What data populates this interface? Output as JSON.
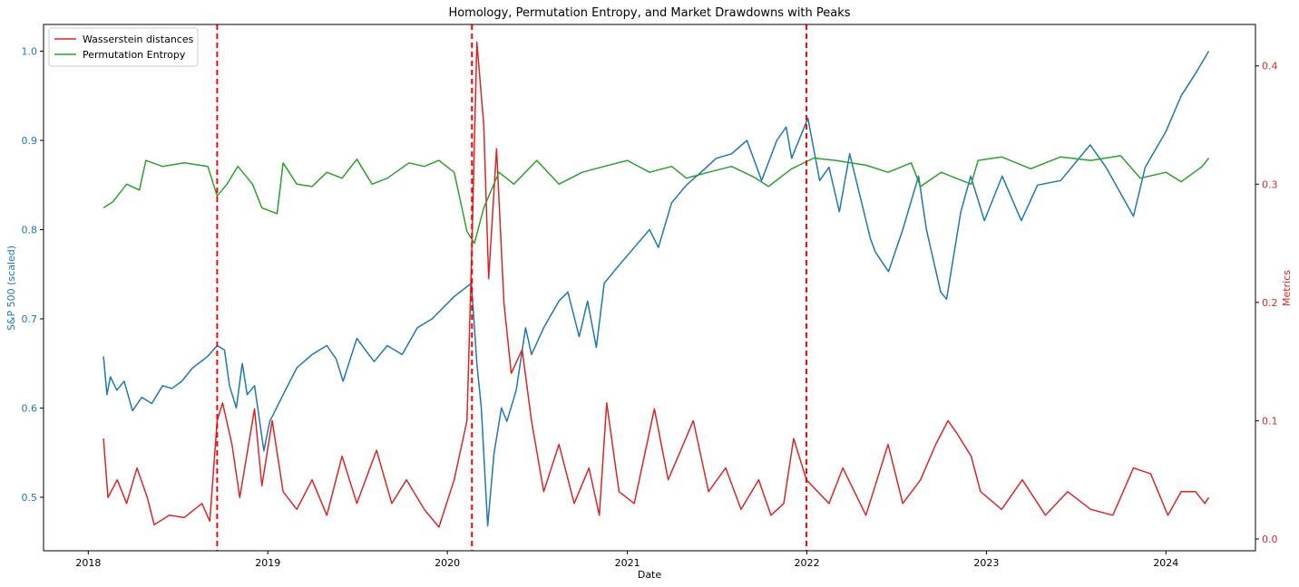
{
  "chart_data": {
    "type": "line",
    "title": "Homology, Permutation Entropy, and Market Drawdowns with Peaks",
    "xlabel": "Date",
    "ylabel_left": "S&P 500 (scaled)",
    "ylabel_right": "Metrics",
    "x_range": [
      "2017-10-02",
      "2024-07-01"
    ],
    "x_ticks": [
      {
        "date": "2018-01-01",
        "label": "2018"
      },
      {
        "date": "2019-01-01",
        "label": "2019"
      },
      {
        "date": "2020-01-01",
        "label": "2020"
      },
      {
        "date": "2021-01-01",
        "label": "2021"
      },
      {
        "date": "2022-01-01",
        "label": "2022"
      },
      {
        "date": "2023-01-01",
        "label": "2023"
      },
      {
        "date": "2024-01-01",
        "label": "2024"
      }
    ],
    "ylim_left": [
      0.44,
      1.03
    ],
    "y_ticks_left": [
      0.5,
      0.6,
      0.7,
      0.8,
      0.9,
      1.0
    ],
    "ylim_right": [
      -0.01,
      0.435
    ],
    "y_ticks_right": [
      0.0,
      0.1,
      0.2,
      0.3,
      0.4
    ],
    "legend_position": "top-left",
    "colors": {
      "sp500": "#1f77b4",
      "wasserstein": "#d62728",
      "entropy": "#2ca02c",
      "peak": "#ff0000"
    },
    "peak_dates": [
      "2018-09-20",
      "2020-02-20",
      "2021-12-31"
    ],
    "series": [
      {
        "key": "sp500",
        "axis": "left",
        "values": [
          [
            "2018-02-01",
            0.658
          ],
          [
            "2018-02-08",
            0.615
          ],
          [
            "2018-02-15",
            0.635
          ],
          [
            "2018-02-28",
            0.62
          ],
          [
            "2018-03-15",
            0.63
          ],
          [
            "2018-04-01",
            0.597
          ],
          [
            "2018-04-20",
            0.612
          ],
          [
            "2018-05-10",
            0.605
          ],
          [
            "2018-06-01",
            0.625
          ],
          [
            "2018-06-20",
            0.622
          ],
          [
            "2018-07-10",
            0.63
          ],
          [
            "2018-08-01",
            0.645
          ],
          [
            "2018-09-01",
            0.658
          ],
          [
            "2018-09-20",
            0.67
          ],
          [
            "2018-10-05",
            0.665
          ],
          [
            "2018-10-15",
            0.625
          ],
          [
            "2018-10-29",
            0.6
          ],
          [
            "2018-11-10",
            0.65
          ],
          [
            "2018-11-20",
            0.615
          ],
          [
            "2018-12-05",
            0.625
          ],
          [
            "2018-12-24",
            0.552
          ],
          [
            "2019-01-05",
            0.585
          ],
          [
            "2019-02-01",
            0.615
          ],
          [
            "2019-03-01",
            0.645
          ],
          [
            "2019-04-01",
            0.66
          ],
          [
            "2019-05-01",
            0.67
          ],
          [
            "2019-05-20",
            0.655
          ],
          [
            "2019-06-03",
            0.63
          ],
          [
            "2019-07-01",
            0.678
          ],
          [
            "2019-08-05",
            0.652
          ],
          [
            "2019-09-01",
            0.67
          ],
          [
            "2019-10-01",
            0.66
          ],
          [
            "2019-11-01",
            0.69
          ],
          [
            "2019-12-01",
            0.7
          ],
          [
            "2020-01-15",
            0.725
          ],
          [
            "2020-02-19",
            0.74
          ],
          [
            "2020-03-01",
            0.65
          ],
          [
            "2020-03-10",
            0.6
          ],
          [
            "2020-03-23",
            0.468
          ],
          [
            "2020-04-05",
            0.55
          ],
          [
            "2020-04-20",
            0.6
          ],
          [
            "2020-05-01",
            0.585
          ],
          [
            "2020-05-20",
            0.62
          ],
          [
            "2020-06-08",
            0.69
          ],
          [
            "2020-06-20",
            0.66
          ],
          [
            "2020-07-15",
            0.69
          ],
          [
            "2020-08-15",
            0.72
          ],
          [
            "2020-09-02",
            0.73
          ],
          [
            "2020-09-25",
            0.68
          ],
          [
            "2020-10-12",
            0.72
          ],
          [
            "2020-10-30",
            0.668
          ],
          [
            "2020-11-15",
            0.74
          ],
          [
            "2020-12-15",
            0.76
          ],
          [
            "2021-01-15",
            0.78
          ],
          [
            "2021-02-15",
            0.8
          ],
          [
            "2021-03-05",
            0.78
          ],
          [
            "2021-04-01",
            0.83
          ],
          [
            "2021-05-01",
            0.85
          ],
          [
            "2021-06-01",
            0.865
          ],
          [
            "2021-07-01",
            0.88
          ],
          [
            "2021-08-01",
            0.885
          ],
          [
            "2021-09-01",
            0.9
          ],
          [
            "2021-10-01",
            0.855
          ],
          [
            "2021-11-01",
            0.9
          ],
          [
            "2021-11-20",
            0.915
          ],
          [
            "2021-12-01",
            0.88
          ],
          [
            "2022-01-03",
            0.925
          ],
          [
            "2022-01-27",
            0.855
          ],
          [
            "2022-02-15",
            0.87
          ],
          [
            "2022-03-08",
            0.82
          ],
          [
            "2022-03-29",
            0.885
          ],
          [
            "2022-05-10",
            0.79
          ],
          [
            "2022-05-20",
            0.775
          ],
          [
            "2022-06-16",
            0.753
          ],
          [
            "2022-07-15",
            0.8
          ],
          [
            "2022-08-16",
            0.86
          ],
          [
            "2022-09-01",
            0.8
          ],
          [
            "2022-09-30",
            0.73
          ],
          [
            "2022-10-12",
            0.722
          ],
          [
            "2022-11-10",
            0.82
          ],
          [
            "2022-11-30",
            0.86
          ],
          [
            "2022-12-28",
            0.81
          ],
          [
            "2023-02-02",
            0.86
          ],
          [
            "2023-03-13",
            0.81
          ],
          [
            "2023-04-15",
            0.85
          ],
          [
            "2023-06-01",
            0.855
          ],
          [
            "2023-07-31",
            0.895
          ],
          [
            "2023-09-01",
            0.87
          ],
          [
            "2023-10-27",
            0.815
          ],
          [
            "2023-11-20",
            0.87
          ],
          [
            "2024-01-01",
            0.91
          ],
          [
            "2024-02-01",
            0.95
          ],
          [
            "2024-03-01",
            0.975
          ],
          [
            "2024-03-28",
            1.0
          ]
        ]
      },
      {
        "key": "wasserstein",
        "name": "Wasserstein distances",
        "axis": "right",
        "values": [
          [
            "2018-02-01",
            0.085
          ],
          [
            "2018-02-10",
            0.035
          ],
          [
            "2018-03-01",
            0.05
          ],
          [
            "2018-03-20",
            0.03
          ],
          [
            "2018-04-10",
            0.06
          ],
          [
            "2018-05-01",
            0.035
          ],
          [
            "2018-05-15",
            0.012
          ],
          [
            "2018-06-15",
            0.02
          ],
          [
            "2018-07-15",
            0.018
          ],
          [
            "2018-08-20",
            0.03
          ],
          [
            "2018-09-05",
            0.015
          ],
          [
            "2018-09-20",
            0.1
          ],
          [
            "2018-10-01",
            0.115
          ],
          [
            "2018-10-20",
            0.08
          ],
          [
            "2018-11-05",
            0.035
          ],
          [
            "2018-12-05",
            0.11
          ],
          [
            "2018-12-20",
            0.045
          ],
          [
            "2019-01-10",
            0.1
          ],
          [
            "2019-02-01",
            0.04
          ],
          [
            "2019-03-01",
            0.025
          ],
          [
            "2019-04-01",
            0.05
          ],
          [
            "2019-05-01",
            0.02
          ],
          [
            "2019-06-01",
            0.07
          ],
          [
            "2019-07-01",
            0.03
          ],
          [
            "2019-08-10",
            0.075
          ],
          [
            "2019-09-10",
            0.03
          ],
          [
            "2019-10-10",
            0.05
          ],
          [
            "2019-11-15",
            0.025
          ],
          [
            "2019-12-15",
            0.01
          ],
          [
            "2020-01-15",
            0.05
          ],
          [
            "2020-02-10",
            0.1
          ],
          [
            "2020-02-20",
            0.25
          ],
          [
            "2020-03-01",
            0.42
          ],
          [
            "2020-03-15",
            0.35
          ],
          [
            "2020-03-25",
            0.22
          ],
          [
            "2020-04-10",
            0.33
          ],
          [
            "2020-04-25",
            0.2
          ],
          [
            "2020-05-10",
            0.14
          ],
          [
            "2020-06-01",
            0.16
          ],
          [
            "2020-06-20",
            0.1
          ],
          [
            "2020-07-15",
            0.04
          ],
          [
            "2020-08-15",
            0.08
          ],
          [
            "2020-09-15",
            0.03
          ],
          [
            "2020-10-15",
            0.06
          ],
          [
            "2020-11-05",
            0.02
          ],
          [
            "2020-11-20",
            0.115
          ],
          [
            "2020-12-15",
            0.04
          ],
          [
            "2021-01-15",
            0.03
          ],
          [
            "2021-02-25",
            0.11
          ],
          [
            "2021-03-25",
            0.05
          ],
          [
            "2021-05-15",
            0.1
          ],
          [
            "2021-06-15",
            0.04
          ],
          [
            "2021-07-20",
            0.06
          ],
          [
            "2021-08-20",
            0.025
          ],
          [
            "2021-09-25",
            0.05
          ],
          [
            "2021-10-20",
            0.02
          ],
          [
            "2021-11-15",
            0.03
          ],
          [
            "2021-12-05",
            0.085
          ],
          [
            "2021-12-31",
            0.05
          ],
          [
            "2022-02-15",
            0.03
          ],
          [
            "2022-03-15",
            0.06
          ],
          [
            "2022-05-01",
            0.02
          ],
          [
            "2022-06-15",
            0.08
          ],
          [
            "2022-07-15",
            0.03
          ],
          [
            "2022-08-20",
            0.05
          ],
          [
            "2022-09-20",
            0.08
          ],
          [
            "2022-10-15",
            0.1
          ],
          [
            "2022-11-01",
            0.09
          ],
          [
            "2022-12-01",
            0.07
          ],
          [
            "2022-12-20",
            0.04
          ],
          [
            "2023-02-01",
            0.025
          ],
          [
            "2023-03-15",
            0.05
          ],
          [
            "2023-05-01",
            0.02
          ],
          [
            "2023-06-15",
            0.04
          ],
          [
            "2023-08-01",
            0.025
          ],
          [
            "2023-09-15",
            0.02
          ],
          [
            "2023-10-27",
            0.06
          ],
          [
            "2023-12-01",
            0.055
          ],
          [
            "2024-01-05",
            0.02
          ],
          [
            "2024-02-01",
            0.04
          ],
          [
            "2024-03-01",
            0.04
          ],
          [
            "2024-03-20",
            0.03
          ],
          [
            "2024-03-28",
            0.035
          ]
        ]
      },
      {
        "key": "entropy",
        "name": "Permutation Entropy",
        "axis": "right",
        "values": [
          [
            "2018-02-01",
            0.28
          ],
          [
            "2018-02-20",
            0.285
          ],
          [
            "2018-03-20",
            0.3
          ],
          [
            "2018-04-15",
            0.295
          ],
          [
            "2018-04-28",
            0.32
          ],
          [
            "2018-06-01",
            0.315
          ],
          [
            "2018-07-15",
            0.318
          ],
          [
            "2018-09-01",
            0.315
          ],
          [
            "2018-09-20",
            0.29
          ],
          [
            "2018-10-10",
            0.3
          ],
          [
            "2018-11-01",
            0.315
          ],
          [
            "2018-12-01",
            0.3
          ],
          [
            "2018-12-20",
            0.28
          ],
          [
            "2019-01-20",
            0.275
          ],
          [
            "2019-02-01",
            0.318
          ],
          [
            "2019-03-01",
            0.3
          ],
          [
            "2019-04-01",
            0.298
          ],
          [
            "2019-05-01",
            0.31
          ],
          [
            "2019-06-01",
            0.305
          ],
          [
            "2019-07-01",
            0.321
          ],
          [
            "2019-08-01",
            0.3
          ],
          [
            "2019-09-01",
            0.305
          ],
          [
            "2019-10-15",
            0.318
          ],
          [
            "2019-11-15",
            0.315
          ],
          [
            "2019-12-15",
            0.32
          ],
          [
            "2020-01-15",
            0.31
          ],
          [
            "2020-02-10",
            0.26
          ],
          [
            "2020-02-25",
            0.25
          ],
          [
            "2020-03-15",
            0.28
          ],
          [
            "2020-04-15",
            0.31
          ],
          [
            "2020-05-15",
            0.3
          ],
          [
            "2020-07-01",
            0.32
          ],
          [
            "2020-08-15",
            0.3
          ],
          [
            "2020-10-01",
            0.31
          ],
          [
            "2020-11-15",
            0.315
          ],
          [
            "2021-01-01",
            0.32
          ],
          [
            "2021-02-15",
            0.31
          ],
          [
            "2021-04-01",
            0.315
          ],
          [
            "2021-05-01",
            0.305
          ],
          [
            "2021-06-15",
            0.31
          ],
          [
            "2021-08-01",
            0.315
          ],
          [
            "2021-09-15",
            0.306
          ],
          [
            "2021-10-15",
            0.298
          ],
          [
            "2021-12-01",
            0.313
          ],
          [
            "2022-01-15",
            0.322
          ],
          [
            "2022-03-01",
            0.32
          ],
          [
            "2022-05-01",
            0.316
          ],
          [
            "2022-06-15",
            0.31
          ],
          [
            "2022-08-01",
            0.318
          ],
          [
            "2022-08-20",
            0.298
          ],
          [
            "2022-10-01",
            0.31
          ],
          [
            "2022-12-01",
            0.3
          ],
          [
            "2022-12-15",
            0.32
          ],
          [
            "2023-02-01",
            0.323
          ],
          [
            "2023-04-01",
            0.313
          ],
          [
            "2023-06-01",
            0.323
          ],
          [
            "2023-08-01",
            0.32
          ],
          [
            "2023-10-01",
            0.324
          ],
          [
            "2023-11-10",
            0.305
          ],
          [
            "2024-01-01",
            0.31
          ],
          [
            "2024-02-01",
            0.302
          ],
          [
            "2024-03-15",
            0.315
          ],
          [
            "2024-03-28",
            0.322
          ]
        ]
      }
    ]
  }
}
